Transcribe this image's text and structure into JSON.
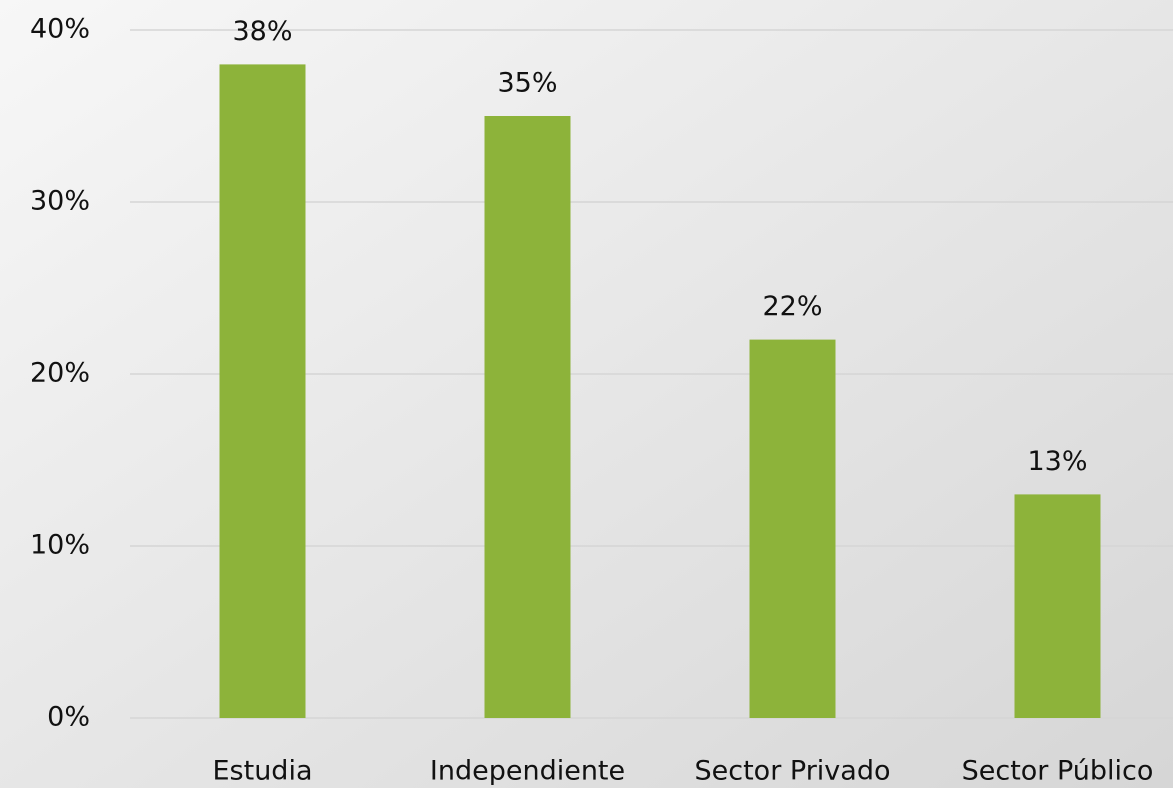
{
  "chart_data": {
    "type": "bar",
    "categories": [
      "Estudia",
      "Independiente",
      "Sector Privado",
      "Sector Público"
    ],
    "values": [
      38,
      35,
      22,
      13
    ],
    "value_labels": [
      "38%",
      "35%",
      "22%",
      "13%"
    ],
    "color": "#8db33a",
    "ylim": [
      0,
      40
    ],
    "yticks": [
      {
        "value": 0,
        "label": "0%"
      },
      {
        "value": 10,
        "label": "10%"
      },
      {
        "value": 20,
        "label": "20%"
      },
      {
        "value": 30,
        "label": "30%"
      },
      {
        "value": 40,
        "label": "40%"
      }
    ],
    "grid": true
  }
}
